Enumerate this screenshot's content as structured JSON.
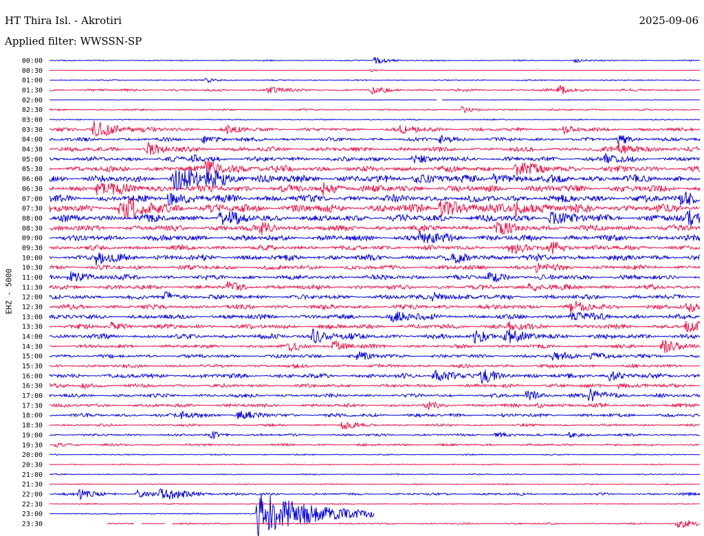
{
  "header": {
    "station": "HT Thira Isl. - Akrotiri",
    "date": "2025-09-06",
    "filter": "Applied filter: WWSSN-SP"
  },
  "chart_data": {
    "type": "line",
    "ylabel": "EHZ - 5000",
    "tick_labels": [
      "00:00",
      "00:30",
      "01:00",
      "01:30",
      "02:00",
      "02:30",
      "03:00",
      "03:30",
      "04:00",
      "04:30",
      "05:00",
      "05:30",
      "06:00",
      "06:30",
      "07:00",
      "07:30",
      "08:00",
      "08:30",
      "09:00",
      "09:30",
      "10:00",
      "10:30",
      "11:00",
      "11:30",
      "12:00",
      "12:30",
      "13:00",
      "13:30",
      "14:00",
      "14:30",
      "15:00",
      "15:30",
      "16:00",
      "16:30",
      "17:00",
      "17:30",
      "18:00",
      "18:30",
      "19:00",
      "19:30",
      "20:00",
      "20:30",
      "21:00",
      "21:30",
      "22:00",
      "22:30",
      "23:00",
      "23:30"
    ],
    "colors": [
      "#0000dd",
      "#ee1144"
    ],
    "noise_levels": [
      1,
      0.5,
      1,
      2,
      0.5,
      1.5,
      1,
      3,
      3,
      4,
      4,
      5,
      6,
      6,
      6,
      7,
      6,
      5,
      5,
      4,
      5,
      4,
      4,
      4,
      4,
      4,
      4,
      4,
      4,
      3,
      3,
      3,
      4,
      3,
      3,
      3,
      3,
      2,
      2,
      2,
      1,
      1,
      1,
      1,
      2,
      1,
      1,
      1.5
    ],
    "events": [
      {
        "row": 0,
        "x": 545,
        "amp": 6
      },
      {
        "row": 0,
        "x": 836,
        "amp": 4
      },
      {
        "row": 1,
        "x": 540,
        "amp": 2
      },
      {
        "row": 2,
        "x": 300,
        "amp": 4
      },
      {
        "row": 3,
        "x": 390,
        "amp": 6
      },
      {
        "row": 3,
        "x": 540,
        "amp": 6
      },
      {
        "row": 3,
        "x": 812,
        "amp": 7
      },
      {
        "row": 5,
        "x": 672,
        "amp": 4
      },
      {
        "row": 7,
        "x": 135,
        "amp": 14
      },
      {
        "row": 7,
        "x": 330,
        "amp": 5
      },
      {
        "row": 7,
        "x": 583,
        "amp": 7
      },
      {
        "row": 7,
        "x": 820,
        "amp": 5
      },
      {
        "row": 8,
        "x": 296,
        "amp": 6
      },
      {
        "row": 8,
        "x": 640,
        "amp": 6
      },
      {
        "row": 8,
        "x": 900,
        "amp": 7
      },
      {
        "row": 9,
        "x": 215,
        "amp": 8
      },
      {
        "row": 9,
        "x": 900,
        "amp": 9
      },
      {
        "row": 10,
        "x": 280,
        "amp": 6
      },
      {
        "row": 10,
        "x": 600,
        "amp": 6
      },
      {
        "row": 10,
        "x": 880,
        "amp": 6
      },
      {
        "row": 11,
        "x": 300,
        "amp": 12
      },
      {
        "row": 11,
        "x": 750,
        "amp": 10
      },
      {
        "row": 12,
        "x": 250,
        "amp": 18
      },
      {
        "row": 12,
        "x": 300,
        "amp": 8
      },
      {
        "row": 12,
        "x": 600,
        "amp": 7
      },
      {
        "row": 12,
        "x": 718,
        "amp": 8
      },
      {
        "row": 13,
        "x": 140,
        "amp": 10
      },
      {
        "row": 13,
        "x": 470,
        "amp": 8
      },
      {
        "row": 14,
        "x": 245,
        "amp": 10
      },
      {
        "row": 14,
        "x": 990,
        "amp": 10
      },
      {
        "row": 15,
        "x": 175,
        "amp": 14
      },
      {
        "row": 15,
        "x": 640,
        "amp": 12
      },
      {
        "row": 15,
        "x": 750,
        "amp": 10
      },
      {
        "row": 16,
        "x": 320,
        "amp": 9
      },
      {
        "row": 16,
        "x": 800,
        "amp": 9
      },
      {
        "row": 16,
        "x": 1000,
        "amp": 9
      },
      {
        "row": 17,
        "x": 380,
        "amp": 7
      },
      {
        "row": 17,
        "x": 720,
        "amp": 8
      },
      {
        "row": 18,
        "x": 610,
        "amp": 9
      },
      {
        "row": 19,
        "x": 740,
        "amp": 8
      },
      {
        "row": 19,
        "x": 800,
        "amp": 8
      },
      {
        "row": 20,
        "x": 140,
        "amp": 9
      },
      {
        "row": 20,
        "x": 660,
        "amp": 7
      },
      {
        "row": 21,
        "x": 780,
        "amp": 6
      },
      {
        "row": 22,
        "x": 100,
        "amp": 9
      },
      {
        "row": 22,
        "x": 710,
        "amp": 7
      },
      {
        "row": 23,
        "x": 330,
        "amp": 6
      },
      {
        "row": 23,
        "x": 770,
        "amp": 7
      },
      {
        "row": 24,
        "x": 240,
        "amp": 7
      },
      {
        "row": 24,
        "x": 630,
        "amp": 7
      },
      {
        "row": 25,
        "x": 830,
        "amp": 8
      },
      {
        "row": 25,
        "x": 1000,
        "amp": 6
      },
      {
        "row": 26,
        "x": 570,
        "amp": 9
      },
      {
        "row": 26,
        "x": 830,
        "amp": 8
      },
      {
        "row": 27,
        "x": 160,
        "amp": 6
      },
      {
        "row": 27,
        "x": 740,
        "amp": 6
      },
      {
        "row": 27,
        "x": 998,
        "amp": 8
      },
      {
        "row": 28,
        "x": 455,
        "amp": 10
      },
      {
        "row": 28,
        "x": 690,
        "amp": 9
      },
      {
        "row": 28,
        "x": 735,
        "amp": 9
      },
      {
        "row": 29,
        "x": 420,
        "amp": 7
      },
      {
        "row": 29,
        "x": 485,
        "amp": 7
      },
      {
        "row": 29,
        "x": 963,
        "amp": 10
      },
      {
        "row": 30,
        "x": 520,
        "amp": 6
      },
      {
        "row": 30,
        "x": 805,
        "amp": 7
      },
      {
        "row": 30,
        "x": 860,
        "amp": 6
      },
      {
        "row": 32,
        "x": 630,
        "amp": 9
      },
      {
        "row": 32,
        "x": 700,
        "amp": 8
      },
      {
        "row": 32,
        "x": 885,
        "amp": 7
      },
      {
        "row": 33,
        "x": 120,
        "amp": 4
      },
      {
        "row": 33,
        "x": 900,
        "amp": 5
      },
      {
        "row": 34,
        "x": 765,
        "amp": 7
      },
      {
        "row": 34,
        "x": 857,
        "amp": 9
      },
      {
        "row": 35,
        "x": 620,
        "amp": 5
      },
      {
        "row": 35,
        "x": 780,
        "amp": 5
      },
      {
        "row": 36,
        "x": 265,
        "amp": 6
      },
      {
        "row": 36,
        "x": 345,
        "amp": 7
      },
      {
        "row": 37,
        "x": 498,
        "amp": 6
      },
      {
        "row": 38,
        "x": 307,
        "amp": 5
      },
      {
        "row": 38,
        "x": 720,
        "amp": 5
      },
      {
        "row": 38,
        "x": 828,
        "amp": 5
      },
      {
        "row": 39,
        "x": 80,
        "amp": 4
      },
      {
        "row": 44,
        "x": 115,
        "amp": 7
      },
      {
        "row": 44,
        "x": 233,
        "amp": 12
      },
      {
        "row": 44,
        "x": 200,
        "amp": 5
      },
      {
        "row": 46,
        "x": 374,
        "amp": 34
      },
      {
        "row": 46,
        "x": 555,
        "amp": 3
      },
      {
        "row": 47,
        "x": 985,
        "amp": 9
      }
    ],
    "gaps": [
      {
        "row": 4,
        "x1": 636,
        "x2": 642
      },
      {
        "row": 46,
        "x1": 545,
        "x2": 1018
      },
      {
        "row": 47,
        "x1": 72,
        "x2": 155
      },
      {
        "row": 47,
        "x1": 195,
        "x2": 205
      },
      {
        "row": 47,
        "x1": 241,
        "x2": 250
      }
    ]
  }
}
